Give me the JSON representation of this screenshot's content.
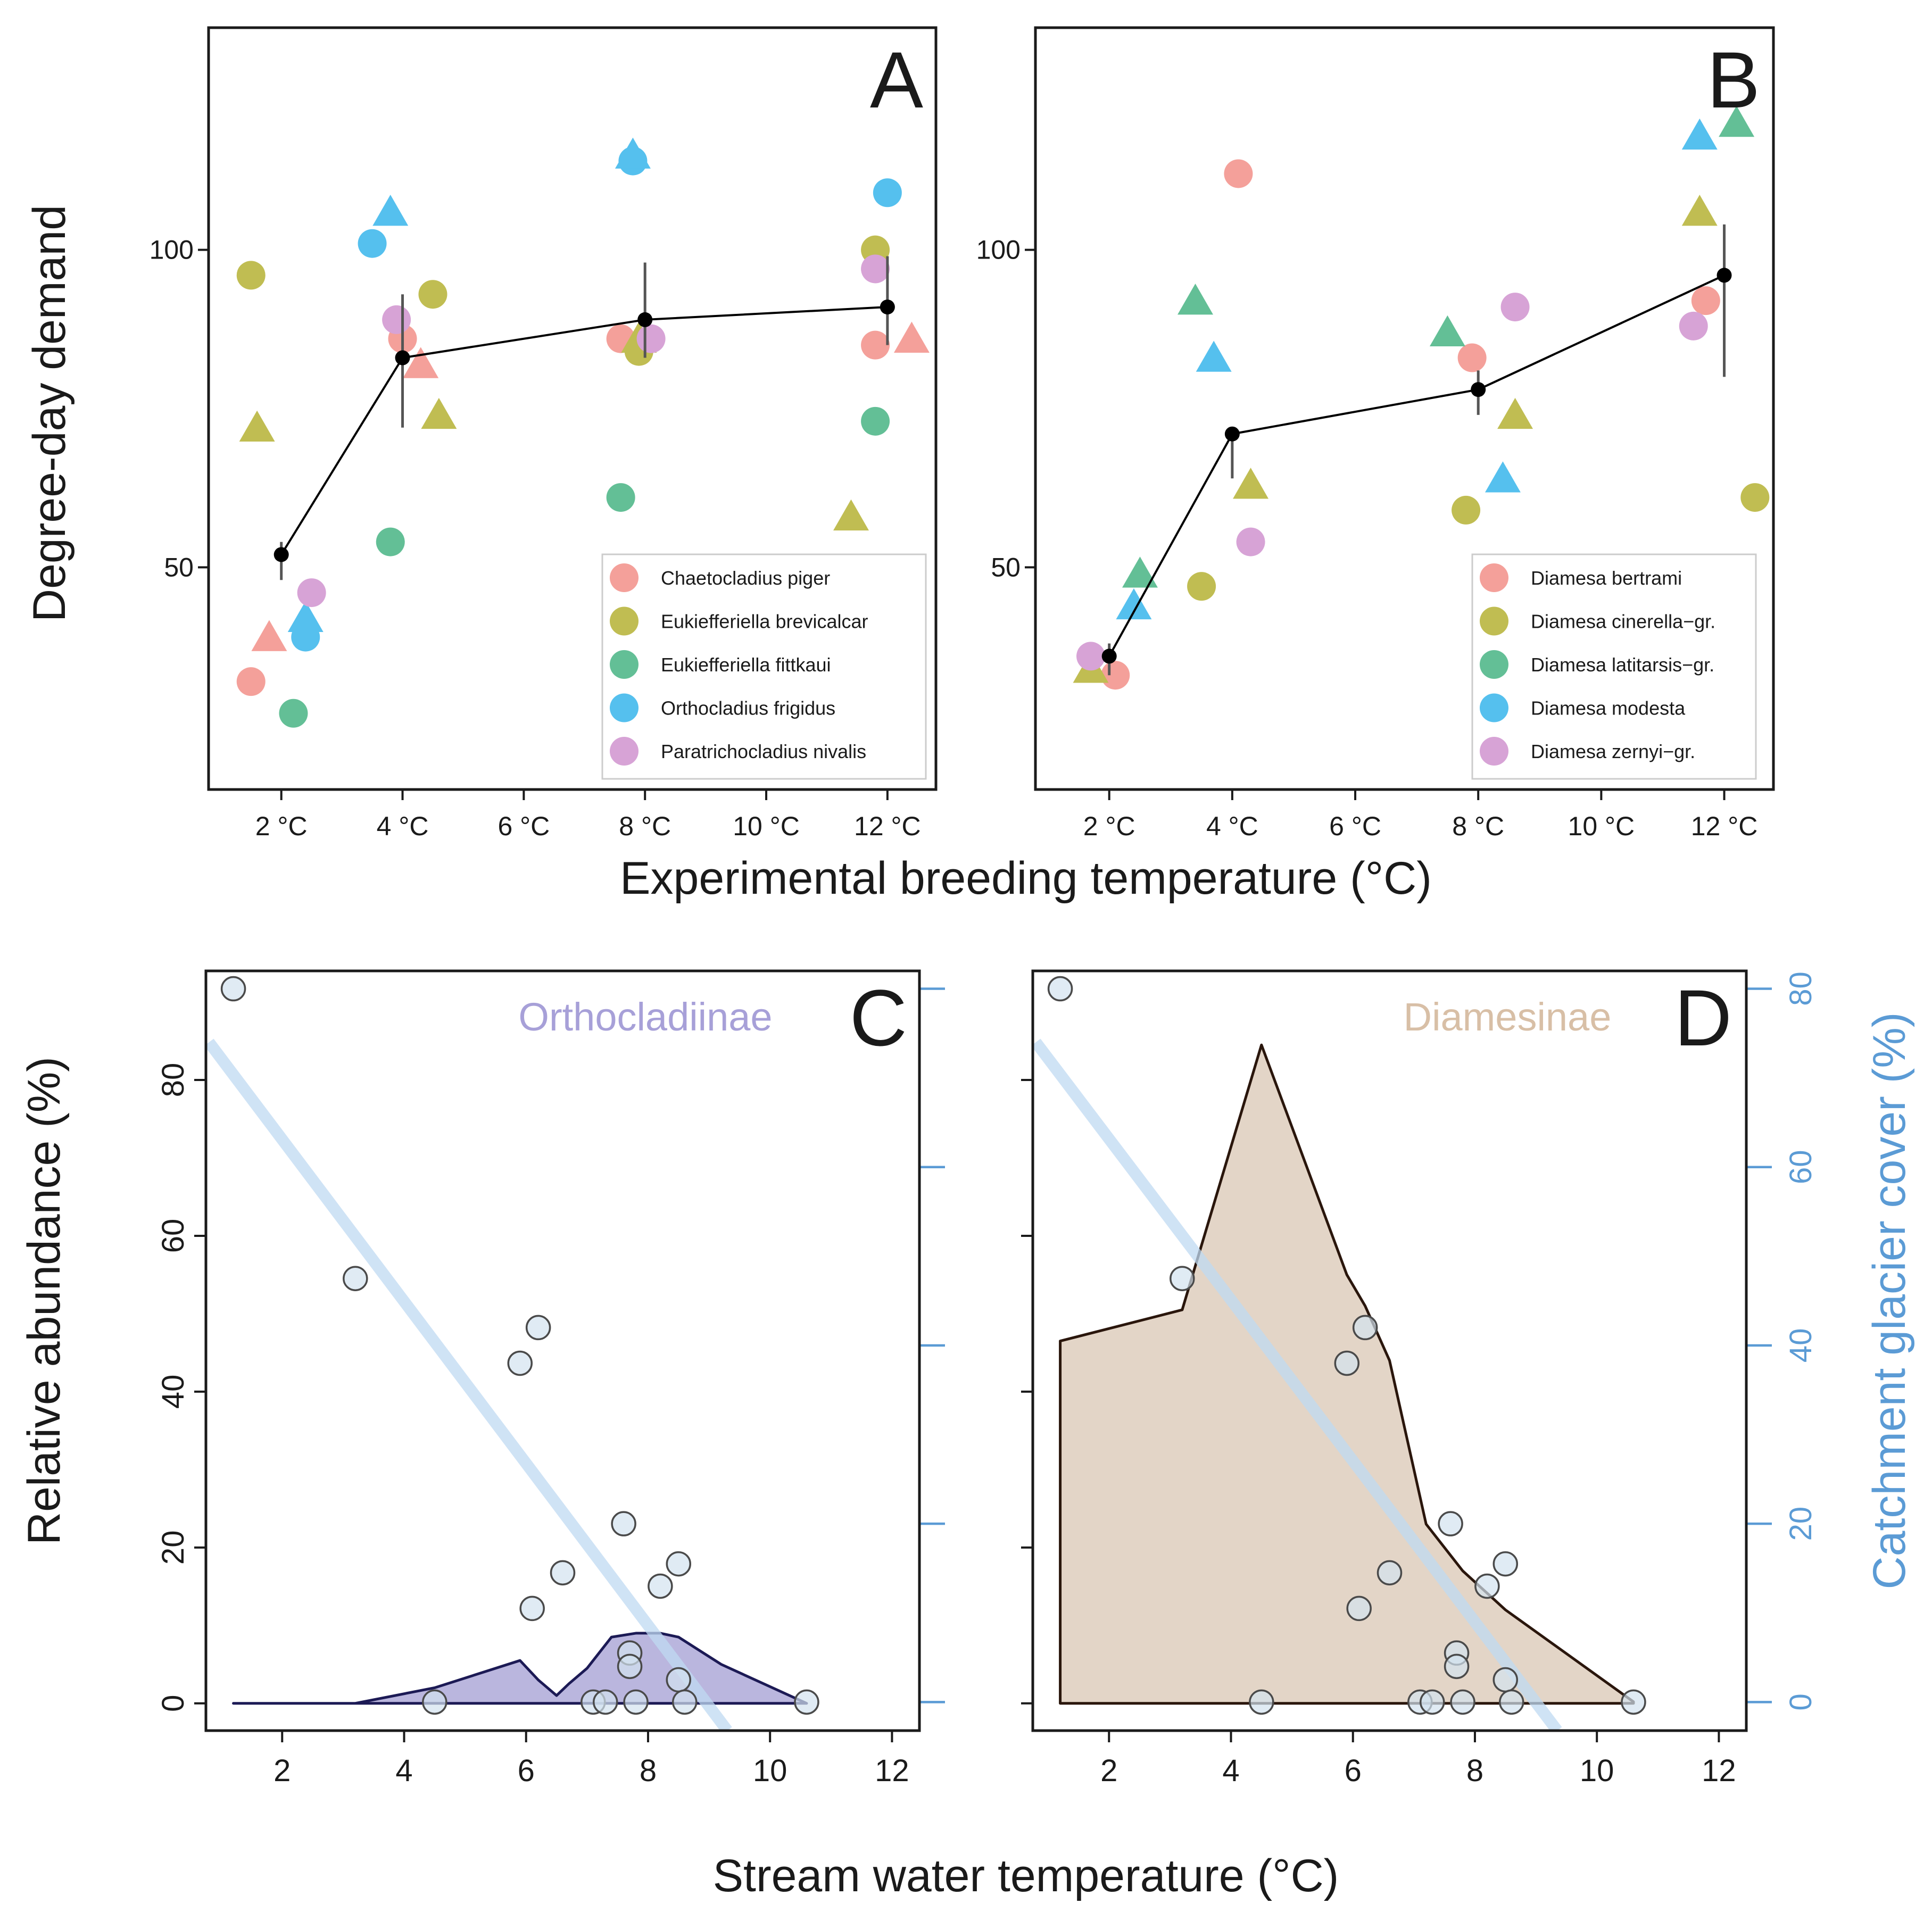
{
  "figure": {
    "top_xlabel": "Experimental breeding temperature (°C)",
    "top_ylabel": "Degree-day demand",
    "bottom_xlabel": "Stream water temperature (°C)",
    "bottom_ylabel": "Relative abundance (%)",
    "right_ylabel": "Catchment glacier cover (%)"
  },
  "colors": {
    "species": [
      "#f4a09a",
      "#c0bd52",
      "#63bf96",
      "#55c0ee",
      "#d7a3d6"
    ],
    "mean_line": "#000000",
    "glacier_line": "#bfd9f1",
    "glacier_axis": "#5b9bd5",
    "points_fill": "#d3e3ef",
    "orthocladiinae_fill": "#8f89c9",
    "orthocladiinae_stroke": "#1c1a55",
    "orthocladiinae_label": "#a7a0d8",
    "diamesinae_fill": "#d2bba5",
    "diamesinae_stroke": "#2a160c",
    "diamesinae_label": "#d8bfa6"
  },
  "chart_data": [
    {
      "panel": "A",
      "type": "scatter",
      "xlabel": "Experimental breeding temperature (°C)",
      "ylabel": "Degree-day demand",
      "xlim": [
        0.8,
        12.8
      ],
      "ylim": [
        15,
        135
      ],
      "x_ticks": [
        2,
        4,
        6,
        8,
        10,
        12
      ],
      "x_tick_labels": [
        "2 °C",
        "4 °C",
        "6 °C",
        "8 °C",
        "10 °C",
        "12 °C"
      ],
      "y_ticks": [
        50,
        100
      ],
      "y_tick_labels": [
        "50",
        "100"
      ],
      "legend_location": "bottom-right",
      "legend": [
        "Chaetocladius piger",
        "Eukiefferiella brevicalcar",
        "Eukiefferiella fittkaui",
        "Orthocladius frigidus",
        "Paratrichocladius nivalis"
      ],
      "points": [
        {
          "x": 1.5,
          "y": 32,
          "s": 0,
          "shape": "circle"
        },
        {
          "x": 1.8,
          "y": 38,
          "s": 0,
          "shape": "triangle"
        },
        {
          "x": 4.0,
          "y": 86,
          "s": 0,
          "shape": "circle"
        },
        {
          "x": 4.3,
          "y": 81,
          "s": 0,
          "shape": "triangle"
        },
        {
          "x": 7.6,
          "y": 86,
          "s": 0,
          "shape": "circle"
        },
        {
          "x": 11.8,
          "y": 85,
          "s": 0,
          "shape": "circle"
        },
        {
          "x": 12.4,
          "y": 85,
          "s": 0,
          "shape": "triangle"
        },
        {
          "x": 1.5,
          "y": 96,
          "s": 1,
          "shape": "circle"
        },
        {
          "x": 1.6,
          "y": 71,
          "s": 1,
          "shape": "triangle"
        },
        {
          "x": 4.5,
          "y": 93,
          "s": 1,
          "shape": "circle"
        },
        {
          "x": 4.6,
          "y": 73,
          "s": 1,
          "shape": "triangle"
        },
        {
          "x": 7.9,
          "y": 84,
          "s": 1,
          "shape": "circle"
        },
        {
          "x": 7.9,
          "y": 85,
          "s": 1,
          "shape": "triangle"
        },
        {
          "x": 11.8,
          "y": 100,
          "s": 1,
          "shape": "circle"
        },
        {
          "x": 11.4,
          "y": 57,
          "s": 1,
          "shape": "triangle"
        },
        {
          "x": 2.2,
          "y": 27,
          "s": 2,
          "shape": "circle"
        },
        {
          "x": 3.8,
          "y": 54,
          "s": 2,
          "shape": "circle"
        },
        {
          "x": 7.6,
          "y": 61,
          "s": 2,
          "shape": "circle"
        },
        {
          "x": 11.8,
          "y": 73,
          "s": 2,
          "shape": "circle"
        },
        {
          "x": 2.4,
          "y": 39,
          "s": 3,
          "shape": "circle"
        },
        {
          "x": 2.4,
          "y": 41,
          "s": 3,
          "shape": "triangle"
        },
        {
          "x": 3.5,
          "y": 101,
          "s": 3,
          "shape": "circle"
        },
        {
          "x": 3.8,
          "y": 105,
          "s": 3,
          "shape": "triangle"
        },
        {
          "x": 7.8,
          "y": 114,
          "s": 3,
          "shape": "circle"
        },
        {
          "x": 7.8,
          "y": 114,
          "s": 3,
          "shape": "triangle"
        },
        {
          "x": 12.0,
          "y": 109,
          "s": 3,
          "shape": "circle"
        },
        {
          "x": 2.5,
          "y": 46,
          "s": 4,
          "shape": "circle"
        },
        {
          "x": 3.9,
          "y": 89,
          "s": 4,
          "shape": "circle"
        },
        {
          "x": 8.1,
          "y": 86,
          "s": 4,
          "shape": "circle"
        },
        {
          "x": 11.8,
          "y": 97,
          "s": 4,
          "shape": "circle"
        }
      ],
      "mean": {
        "x": [
          2,
          4,
          8,
          12
        ],
        "y": [
          52,
          83,
          89,
          91
        ],
        "err_low": [
          48,
          72,
          83,
          85
        ],
        "err_high": [
          54,
          93,
          98,
          99
        ]
      }
    },
    {
      "panel": "B",
      "type": "scatter",
      "xlabel": "Experimental breeding temperature (°C)",
      "ylabel": "Degree-day demand",
      "xlim": [
        0.8,
        12.8
      ],
      "ylim": [
        15,
        135
      ],
      "x_ticks": [
        2,
        4,
        6,
        8,
        10,
        12
      ],
      "x_tick_labels": [
        "2 °C",
        "4 °C",
        "6 °C",
        "8 °C",
        "10 °C",
        "12 °C"
      ],
      "y_ticks": [
        50,
        100
      ],
      "y_tick_labels": [
        "50",
        "100"
      ],
      "legend_location": "bottom-right",
      "legend": [
        "Diamesa bertrami",
        "Diamesa cinerella−gr.",
        "Diamesa latitarsis−gr.",
        "Diamesa modesta",
        "Diamesa zernyi−gr."
      ],
      "points": [
        {
          "x": 2.1,
          "y": 33,
          "s": 0,
          "shape": "circle"
        },
        {
          "x": 4.1,
          "y": 112,
          "s": 0,
          "shape": "circle"
        },
        {
          "x": 7.9,
          "y": 83,
          "s": 0,
          "shape": "circle"
        },
        {
          "x": 11.7,
          "y": 92,
          "s": 0,
          "shape": "circle"
        },
        {
          "x": 1.7,
          "y": 33,
          "s": 1,
          "shape": "triangle"
        },
        {
          "x": 3.5,
          "y": 47,
          "s": 1,
          "shape": "circle"
        },
        {
          "x": 4.3,
          "y": 62,
          "s": 1,
          "shape": "triangle"
        },
        {
          "x": 7.8,
          "y": 59,
          "s": 1,
          "shape": "circle"
        },
        {
          "x": 8.6,
          "y": 73,
          "s": 1,
          "shape": "triangle"
        },
        {
          "x": 11.6,
          "y": 105,
          "s": 1,
          "shape": "triangle"
        },
        {
          "x": 12.5,
          "y": 61,
          "s": 1,
          "shape": "circle"
        },
        {
          "x": 2.5,
          "y": 48,
          "s": 2,
          "shape": "triangle"
        },
        {
          "x": 3.4,
          "y": 91,
          "s": 2,
          "shape": "triangle"
        },
        {
          "x": 7.5,
          "y": 86,
          "s": 2,
          "shape": "triangle"
        },
        {
          "x": 12.2,
          "y": 119,
          "s": 2,
          "shape": "triangle"
        },
        {
          "x": 2.4,
          "y": 43,
          "s": 3,
          "shape": "triangle"
        },
        {
          "x": 3.7,
          "y": 82,
          "s": 3,
          "shape": "triangle"
        },
        {
          "x": 8.4,
          "y": 63,
          "s": 3,
          "shape": "triangle"
        },
        {
          "x": 11.6,
          "y": 117,
          "s": 3,
          "shape": "triangle"
        },
        {
          "x": 1.7,
          "y": 36,
          "s": 4,
          "shape": "circle"
        },
        {
          "x": 4.3,
          "y": 54,
          "s": 4,
          "shape": "circle"
        },
        {
          "x": 8.6,
          "y": 91,
          "s": 4,
          "shape": "circle"
        },
        {
          "x": 11.5,
          "y": 88,
          "s": 4,
          "shape": "circle"
        }
      ],
      "mean": {
        "x": [
          2,
          4,
          8,
          12
        ],
        "y": [
          36,
          71,
          78,
          96
        ],
        "err_low": [
          33,
          64,
          74,
          80
        ],
        "err_high": [
          38,
          72,
          81,
          104
        ]
      }
    },
    {
      "panel": "C",
      "type": "area",
      "group_label": "Orthocladiinae",
      "xlabel": "Stream water temperature (°C)",
      "ylabel": "Relative abundance (%)",
      "right_ylabel": "Catchment glacier cover (%)",
      "xlim": [
        0.75,
        12.45
      ],
      "ylim": [
        -3.5,
        94
      ],
      "right_ylim": [
        -3.2,
        82
      ],
      "x_ticks": [
        2,
        4,
        6,
        8,
        10,
        12
      ],
      "x_tick_labels": [
        "2",
        "4",
        "6",
        "8",
        "10",
        "12"
      ],
      "y_ticks": [
        0,
        20,
        40,
        60,
        80
      ],
      "y_tick_labels": [
        "0",
        "20",
        "40",
        "60",
        "80"
      ],
      "right_ticks": [
        0,
        20,
        40,
        60,
        80
      ],
      "area": {
        "x": [
          1.2,
          3.2,
          4.5,
          5.9,
          6.2,
          6.5,
          6.7,
          7.0,
          7.4,
          7.8,
          8.2,
          8.5,
          8.8,
          9.2,
          10.6
        ],
        "y": [
          0,
          0,
          2,
          5.5,
          3,
          1,
          2.5,
          4.5,
          8.5,
          9,
          9,
          8.5,
          7,
          5,
          0
        ]
      },
      "glacier_line": {
        "x": [
          0.8,
          9.3
        ],
        "y": [
          74,
          -3.2
        ]
      },
      "glacier_points": {
        "x": [
          1.2,
          3.2,
          4.5,
          5.9,
          6.2,
          6.1,
          6.6,
          7.1,
          7.3,
          7.6,
          7.7,
          7.7,
          7.8,
          8.2,
          8.5,
          8.5,
          8.6,
          10.6
        ],
        "y": [
          80,
          47.5,
          0,
          38,
          42,
          10.5,
          14.5,
          0,
          0,
          20,
          5.5,
          4,
          0,
          13,
          15.5,
          2.5,
          0,
          0
        ]
      }
    },
    {
      "panel": "D",
      "type": "area",
      "group_label": "Diamesinae",
      "xlabel": "Stream water temperature (°C)",
      "ylabel": "Relative abundance (%)",
      "right_ylabel": "Catchment glacier cover (%)",
      "xlim": [
        0.75,
        12.45
      ],
      "ylim": [
        -3.5,
        94
      ],
      "right_ylim": [
        -3.2,
        82
      ],
      "x_ticks": [
        2,
        4,
        6,
        8,
        10,
        12
      ],
      "x_tick_labels": [
        "2",
        "4",
        "6",
        "8",
        "10",
        "12"
      ],
      "right_ticks": [
        0,
        20,
        40,
        60,
        80
      ],
      "right_tick_labels": [
        "0",
        "20",
        "40",
        "60",
        "80"
      ],
      "area": {
        "x": [
          1.2,
          1.2,
          3.2,
          4.5,
          5.9,
          6.2,
          6.6,
          7.2,
          7.8,
          8.5,
          10.6,
          10.6
        ],
        "y": [
          0,
          46.5,
          50.5,
          84.5,
          55,
          51,
          44,
          23,
          17,
          12,
          0.2,
          0
        ]
      },
      "glacier_line": {
        "x": [
          0.8,
          9.35
        ],
        "y": [
          74,
          -3.2
        ]
      },
      "glacier_points": {
        "x": [
          1.2,
          3.2,
          4.5,
          5.9,
          6.2,
          6.1,
          6.6,
          7.1,
          7.3,
          7.6,
          7.7,
          7.7,
          7.8,
          8.2,
          8.5,
          8.5,
          8.6,
          10.6
        ],
        "y": [
          80,
          47.5,
          0,
          38,
          42,
          10.5,
          14.5,
          0,
          0,
          20,
          5.5,
          4,
          0,
          13,
          15.5,
          2.5,
          0,
          0
        ]
      }
    }
  ]
}
